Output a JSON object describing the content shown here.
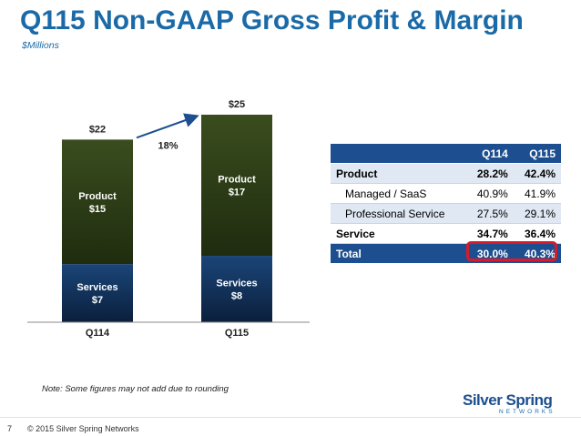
{
  "header": {
    "title": "Q115 Non-GAAP Gross Profit & Margin",
    "subtitle": "$Millions"
  },
  "chart_data": {
    "type": "bar",
    "stacked": true,
    "categories": [
      "Q114",
      "Q115"
    ],
    "series": [
      {
        "name": "Services",
        "values": [
          7,
          8
        ],
        "labels": [
          "Services\n$7",
          "Services\n$8"
        ],
        "color": "#0f2d55"
      },
      {
        "name": "Product",
        "values": [
          15,
          17
        ],
        "labels": [
          "Product\n$15",
          "Product\n$17"
        ],
        "color": "#2f4019"
      }
    ],
    "totals": [
      22,
      25
    ],
    "total_labels": [
      "$22",
      "$25"
    ],
    "growth_label": "18%",
    "ylim": [
      0,
      25
    ],
    "grid": false
  },
  "margin_table": {
    "headers": [
      "",
      "Q114",
      "Q115"
    ],
    "rows": [
      {
        "label": "Product",
        "q114": "28.2%",
        "q115": "42.4%",
        "style": "bold shade"
      },
      {
        "label": "Managed / SaaS",
        "q114": "40.9%",
        "q115": "41.9%",
        "style": "sub white"
      },
      {
        "label": "Professional Service",
        "q114": "27.5%",
        "q115": "29.1%",
        "style": "sub shade"
      },
      {
        "label": "Service",
        "q114": "34.7%",
        "q115": "36.4%",
        "style": "bold white"
      },
      {
        "label": "Total",
        "q114": "30.0%",
        "q115": "40.3%",
        "style": "total"
      }
    ]
  },
  "note": "Note:  Some figures may not add due to rounding",
  "footer": {
    "page_number": "7",
    "copyright": "© 2015 Silver Spring Networks"
  },
  "logo": {
    "text": "Silver Spring",
    "subtext": "NETWORKS"
  },
  "colors": {
    "title": "#1b6aa8",
    "table_header": "#1d4f90",
    "highlight": "#d81b2c",
    "services_bar": "#0f2d55",
    "product_bar": "#2f4019"
  }
}
